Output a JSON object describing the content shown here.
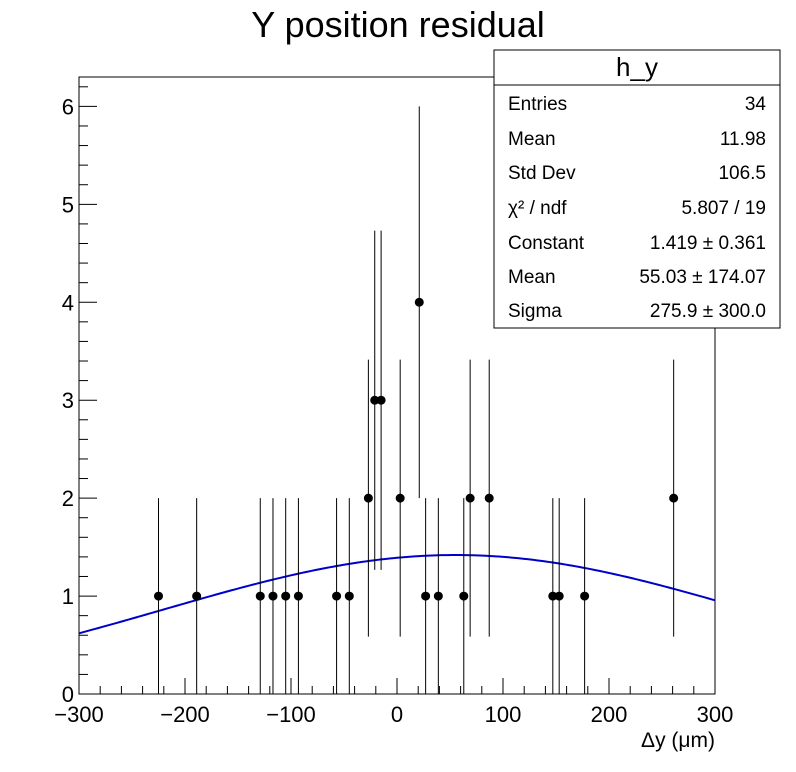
{
  "chart_data": {
    "type": "scatter",
    "title": "Y position residual",
    "xlabel": "Δy (μm)",
    "ylabel": "",
    "xlim": [
      -300,
      300
    ],
    "ylim": [
      0,
      6.3
    ],
    "x_ticks": [
      "−300",
      "−200",
      "−100",
      "0",
      "100",
      "200",
      "300"
    ],
    "y_ticks": [
      "0",
      "1",
      "2",
      "3",
      "4",
      "5",
      "6"
    ],
    "grid": false,
    "series": [
      {
        "kind": "points_with_errors",
        "color": "#000000",
        "points": [
          {
            "x": -225,
            "y": 1,
            "err": 1
          },
          {
            "x": -189,
            "y": 1,
            "err": 1
          },
          {
            "x": -129,
            "y": 1,
            "err": 1
          },
          {
            "x": -117,
            "y": 1,
            "err": 1
          },
          {
            "x": -105,
            "y": 1,
            "err": 1
          },
          {
            "x": -93,
            "y": 1,
            "err": 1
          },
          {
            "x": -57,
            "y": 1,
            "err": 1
          },
          {
            "x": -45,
            "y": 1,
            "err": 1
          },
          {
            "x": -27,
            "y": 2,
            "err": 1.414
          },
          {
            "x": -21,
            "y": 3,
            "err": 1.732
          },
          {
            "x": -15,
            "y": 3,
            "err": 1.732
          },
          {
            "x": 3,
            "y": 2,
            "err": 1.414
          },
          {
            "x": 21,
            "y": 4,
            "err": 2
          },
          {
            "x": 27,
            "y": 1,
            "err": 1
          },
          {
            "x": 39,
            "y": 1,
            "err": 1
          },
          {
            "x": 63,
            "y": 1,
            "err": 1
          },
          {
            "x": 69,
            "y": 2,
            "err": 1.414
          },
          {
            "x": 87,
            "y": 2,
            "err": 1.414
          },
          {
            "x": 147,
            "y": 1,
            "err": 1
          },
          {
            "x": 153,
            "y": 1,
            "err": 1
          },
          {
            "x": 177,
            "y": 1,
            "err": 1
          },
          {
            "x": 261,
            "y": 2,
            "err": 1.414
          }
        ]
      },
      {
        "kind": "gaussian_fit",
        "color": "#0000cc",
        "constant": 1.419,
        "mean": 55.03,
        "sigma": 275.9
      }
    ],
    "stats_box": {
      "title": "h_y",
      "rows": [
        {
          "label": "Entries",
          "value": "34"
        },
        {
          "label": "Mean",
          "value": "11.98"
        },
        {
          "label": "Std Dev",
          "value": "106.5"
        },
        {
          "label": "χ² / ndf",
          "value": "5.807 / 19"
        },
        {
          "label": "Constant",
          "value": "1.419 ± 0.361"
        },
        {
          "label": "Mean",
          "value": "55.03 ± 174.07"
        },
        {
          "label": "Sigma",
          "value": "275.9 ± 300.0"
        }
      ]
    }
  }
}
